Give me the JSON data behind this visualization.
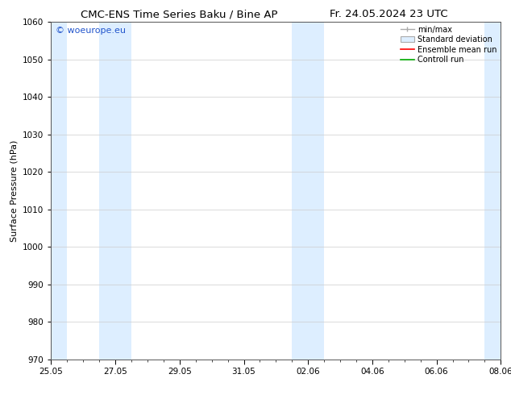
{
  "title_left": "CMC-ENS Time Series Baku / Bine AP",
  "title_right": "Fr. 24.05.2024 23 UTC",
  "ylabel": "Surface Pressure (hPa)",
  "ylim": [
    970,
    1060
  ],
  "yticks": [
    970,
    980,
    990,
    1000,
    1010,
    1020,
    1030,
    1040,
    1050,
    1060
  ],
  "xlabel_ticks": [
    "25.05",
    "27.05",
    "29.05",
    "31.05",
    "02.06",
    "04.06",
    "06.06",
    "08.06"
  ],
  "x_tick_positions": [
    0,
    2,
    4,
    6,
    8,
    10,
    12,
    14
  ],
  "x_total": 14,
  "shaded_bands": [
    {
      "x_start": 0.0,
      "x_end": 0.5
    },
    {
      "x_start": 1.5,
      "x_end": 2.5
    },
    {
      "x_start": 7.5,
      "x_end": 8.5
    },
    {
      "x_start": 13.5,
      "x_end": 14.0
    }
  ],
  "shade_color": "#ddeeff",
  "bg_color": "#ffffff",
  "grid_color": "#cccccc",
  "watermark_text": "© woeurope.eu",
  "watermark_color": "#2255cc",
  "legend_labels": [
    "min/max",
    "Standard deviation",
    "Ensemble mean run",
    "Controll run"
  ],
  "title_fontsize": 9.5,
  "axis_label_fontsize": 8,
  "tick_fontsize": 7.5,
  "legend_fontsize": 7
}
